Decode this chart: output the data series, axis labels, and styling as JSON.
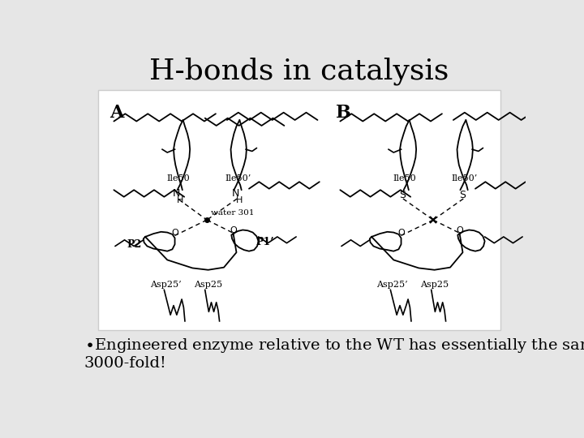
{
  "title": "H-bonds in catalysis",
  "title_fontsize": 26,
  "title_font": "serif",
  "bg_color": "#e6e6e6",
  "bullet_fontsize": 14,
  "bullet_line1": "•Engineered enzyme relative to the WT has essentially the same $K_M$ but $k_{cat}$ decreases",
  "bullet_line2": "3000-fold!"
}
